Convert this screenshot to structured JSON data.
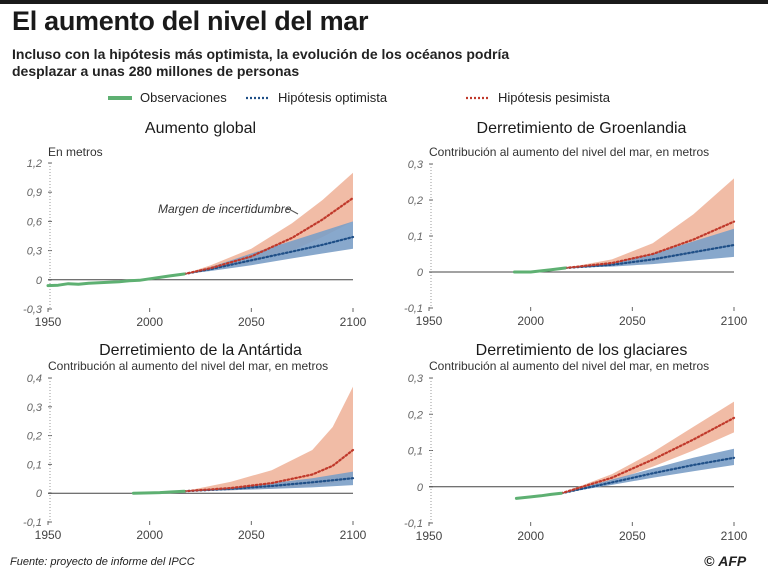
{
  "header": {
    "title": "El aumento del nivel del mar",
    "subtitle": "Incluso con la hipótesis más optimista, la evolución de los océanos podría desplazar a unas 280 millones de personas"
  },
  "legend": {
    "observations": "Observaciones",
    "optimistic": "Hipótesis optimista",
    "pessimistic": "Hipótesis pesimista"
  },
  "colors": {
    "observations": "#5eb072",
    "optimistic_line": "#1f4f87",
    "optimistic_band": "#7b9fc6",
    "pessimistic_line": "#c0392b",
    "pessimistic_band": "#eeb097",
    "axis": "#444444",
    "tick": "#666666"
  },
  "footer": {
    "source": "Fuente: proyecto de informe del IPCC",
    "credit_symbol": "©",
    "credit_agency": "AFP"
  },
  "chart_data": [
    {
      "type": "line",
      "title": "Aumento global",
      "ylabel": "En metros",
      "xlim": [
        1950,
        2100
      ],
      "ylim": [
        -0.3,
        1.2
      ],
      "yticks": [
        -0.3,
        0,
        0.3,
        0.6,
        0.9,
        1.2
      ],
      "ytick_labels": [
        "-0,3",
        "0",
        "0,3",
        "0,6",
        "0,9",
        "1,2"
      ],
      "xticks": [
        1950,
        2000,
        2050,
        2100
      ],
      "annotation": "Margen de incertidumbre",
      "series": [
        {
          "name": "Observaciones",
          "x": [
            1950,
            1955,
            1960,
            1965,
            1970,
            1975,
            1980,
            1985,
            1990,
            1995,
            2000,
            2005,
            2010,
            2017
          ],
          "y": [
            -0.06,
            -0.055,
            -0.04,
            -0.045,
            -0.035,
            -0.03,
            -0.025,
            -0.02,
            -0.01,
            -0.005,
            0.01,
            0.025,
            0.04,
            0.06
          ]
        },
        {
          "name": "Hipótesis optimista",
          "x": [
            2017,
            2030,
            2050,
            2070,
            2085,
            2100
          ],
          "y": [
            0.06,
            0.11,
            0.2,
            0.29,
            0.36,
            0.44
          ],
          "low": [
            0.06,
            0.09,
            0.15,
            0.22,
            0.27,
            0.32
          ],
          "high": [
            0.06,
            0.13,
            0.27,
            0.4,
            0.5,
            0.6
          ]
        },
        {
          "name": "Hipótesis pesimista",
          "x": [
            2017,
            2030,
            2050,
            2070,
            2085,
            2100
          ],
          "y": [
            0.06,
            0.12,
            0.24,
            0.43,
            0.62,
            0.84
          ],
          "low": [
            0.06,
            0.1,
            0.18,
            0.3,
            0.44,
            0.6
          ],
          "high": [
            0.06,
            0.15,
            0.32,
            0.58,
            0.82,
            1.1
          ]
        }
      ]
    },
    {
      "type": "line",
      "title": "Derretimiento de Groenlandia",
      "ylabel": "Contribución al aumento del nivel del mar, en metros",
      "xlim": [
        1950,
        2100
      ],
      "ylim": [
        -0.1,
        0.3
      ],
      "yticks": [
        -0.1,
        0,
        0.1,
        0.2,
        0.3
      ],
      "ytick_labels": [
        "-0,1",
        "0",
        "0,1",
        "0,2",
        "0,3"
      ],
      "xticks": [
        1950,
        2000,
        2050,
        2100
      ],
      "series": [
        {
          "name": "Observaciones",
          "x": [
            1992,
            2000,
            2005,
            2010,
            2017
          ],
          "y": [
            0,
            0,
            0.003,
            0.006,
            0.011
          ]
        },
        {
          "name": "Hipótesis optimista",
          "x": [
            2017,
            2040,
            2060,
            2080,
            2100
          ],
          "y": [
            0.011,
            0.02,
            0.035,
            0.055,
            0.075
          ],
          "low": [
            0.011,
            0.015,
            0.022,
            0.032,
            0.042
          ],
          "high": [
            0.011,
            0.026,
            0.05,
            0.085,
            0.12
          ]
        },
        {
          "name": "Hipótesis pesimista",
          "x": [
            2017,
            2040,
            2060,
            2080,
            2100
          ],
          "y": [
            0.011,
            0.025,
            0.05,
            0.09,
            0.14
          ],
          "low": [
            0.011,
            0.017,
            0.03,
            0.05,
            0.075
          ],
          "high": [
            0.011,
            0.035,
            0.08,
            0.16,
            0.26
          ]
        }
      ]
    },
    {
      "type": "line",
      "title": "Derretimiento de la Antártida",
      "ylabel": "Contribución al aumento del nivel del mar, en metros",
      "xlim": [
        1950,
        2100
      ],
      "ylim": [
        -0.1,
        0.4
      ],
      "yticks": [
        -0.1,
        0,
        0.1,
        0.2,
        0.3,
        0.4
      ],
      "ytick_labels": [
        "-0,1",
        "0",
        "0,1",
        "0,2",
        "0,3",
        "0,4"
      ],
      "xticks": [
        1950,
        2000,
        2050,
        2100
      ],
      "series": [
        {
          "name": "Observaciones",
          "x": [
            1992,
            2000,
            2005,
            2010,
            2017
          ],
          "y": [
            0,
            0.001,
            0.002,
            0.004,
            0.007
          ]
        },
        {
          "name": "Hipótesis optimista",
          "x": [
            2017,
            2040,
            2060,
            2080,
            2100
          ],
          "y": [
            0.007,
            0.015,
            0.025,
            0.038,
            0.052
          ],
          "low": [
            0.007,
            0.01,
            0.015,
            0.02,
            0.028
          ],
          "high": [
            0.007,
            0.02,
            0.035,
            0.052,
            0.075
          ]
        },
        {
          "name": "Hipótesis pesimista",
          "x": [
            2017,
            2040,
            2060,
            2080,
            2090,
            2100
          ],
          "y": [
            0.007,
            0.018,
            0.035,
            0.065,
            0.095,
            0.15
          ],
          "low": [
            0.007,
            0.01,
            0.016,
            0.025,
            0.035,
            0.05
          ],
          "high": [
            0.007,
            0.04,
            0.08,
            0.15,
            0.23,
            0.37
          ]
        }
      ]
    },
    {
      "type": "line",
      "title": "Derretimiento de los glaciares",
      "ylabel": "Contribución al aumento del nivel del mar, en metros",
      "xlim": [
        1950,
        2100
      ],
      "ylim": [
        -0.1,
        0.3
      ],
      "yticks": [
        -0.1,
        0,
        0.1,
        0.2,
        0.3
      ],
      "ytick_labels": [
        "-0,1",
        "0",
        "0,1",
        "0,2",
        "0,3"
      ],
      "xticks": [
        1950,
        2000,
        2050,
        2100
      ],
      "series": [
        {
          "name": "Observaciones",
          "x": [
            1993,
            2000,
            2005,
            2010,
            2015
          ],
          "y": [
            -0.032,
            -0.028,
            -0.025,
            -0.021,
            -0.018
          ]
        },
        {
          "name": "Hipótesis optimista",
          "x": [
            2015,
            2040,
            2060,
            2080,
            2100
          ],
          "y": [
            -0.018,
            0.012,
            0.037,
            0.06,
            0.08
          ],
          "low": [
            -0.018,
            0.005,
            0.025,
            0.043,
            0.06
          ],
          "high": [
            -0.018,
            0.02,
            0.05,
            0.08,
            0.105
          ]
        },
        {
          "name": "Hipótesis pesimista",
          "x": [
            2015,
            2040,
            2060,
            2080,
            2100
          ],
          "y": [
            -0.018,
            0.025,
            0.075,
            0.13,
            0.19
          ],
          "low": [
            -0.018,
            0.015,
            0.055,
            0.1,
            0.15
          ],
          "high": [
            -0.018,
            0.035,
            0.095,
            0.165,
            0.235
          ]
        }
      ]
    }
  ]
}
